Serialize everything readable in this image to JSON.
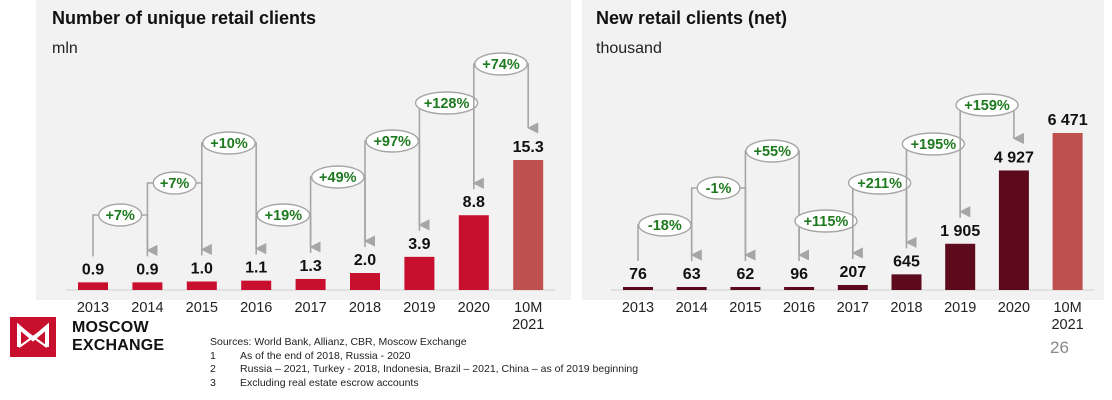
{
  "logo": {
    "line1": "MOSCOW",
    "line2": "EXCHANGE"
  },
  "sources": {
    "title": "Sources: World Bank, Allianz, CBR, Moscow Exchange",
    "footnotes": [
      {
        "num": "1",
        "text": "As of the end of 2018, Russia - 2020"
      },
      {
        "num": "2",
        "text": "Russia – 2021, Turkey - 2018, Indonesia, Brazil – 2021, China – as of 2019 beginning"
      },
      {
        "num": "3",
        "text": "Excluding real estate escrow accounts"
      }
    ]
  },
  "page_number": "26",
  "colors": {
    "bar_left": "#c8102e",
    "bar_right": "#5c0a1c",
    "bar_highlight": "#c0504d",
    "growth_text": "#1e7a1e",
    "arrow": "#a6a6a6",
    "panel_bg": "#f2f2f2"
  },
  "chart_data": [
    {
      "type": "bar",
      "title": "Number of unique retail clients",
      "unit": "mln",
      "categories": [
        "2013",
        "2014",
        "2015",
        "2016",
        "2017",
        "2018",
        "2019",
        "2020",
        "10M\n2021"
      ],
      "values": [
        0.9,
        0.9,
        1.0,
        1.1,
        1.3,
        2.0,
        3.9,
        8.8,
        15.3
      ],
      "value_labels": [
        "0.9",
        "0.9",
        "1.0",
        "1.1",
        "1.3",
        "2.0",
        "3.9",
        "8.8",
        "15.3"
      ],
      "growth_annotations": [
        "+7%",
        "+7%",
        "+10%",
        "+19%",
        "+49%",
        "+97%",
        "+128%",
        "+74%"
      ],
      "highlight_last": true,
      "legend": "none",
      "grid": false
    },
    {
      "type": "bar",
      "title": "New retail clients (net)",
      "unit": "thousand",
      "categories": [
        "2013",
        "2014",
        "2015",
        "2016",
        "2017",
        "2018",
        "2019",
        "2020",
        "10M\n2021"
      ],
      "values": [
        76,
        63,
        62,
        96,
        207,
        645,
        1905,
        4927,
        6471
      ],
      "value_labels": [
        "76",
        "63",
        "62",
        "96",
        "207",
        "645",
        "1 905",
        "4 927",
        "6 471"
      ],
      "growth_annotations": [
        "-18%",
        "-1%",
        "+55%",
        "+115%",
        "+211%",
        "+195%",
        "+159%"
      ],
      "highlight_last": true,
      "legend": "none",
      "grid": false
    }
  ]
}
